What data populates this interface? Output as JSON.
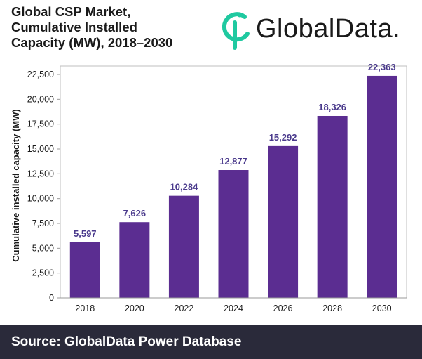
{
  "title_lines": [
    "Global CSP Market,",
    "Cumulative Installed",
    "Capacity (MW), 2018–2030"
  ],
  "logo": {
    "text": "GlobalData.",
    "icon": "globaldata-logo-icon",
    "color": "#1fc9a0"
  },
  "source": "Source: GlobalData Power Database",
  "colors": {
    "bar": "#5b2d91",
    "label": "#4a3a8c",
    "footer": "#2a2a3a"
  },
  "chart_data": {
    "type": "bar",
    "title": "Global CSP Market, Cumulative Installed Capacity (MW), 2018–2030",
    "categories": [
      "2018",
      "2020",
      "2022",
      "2024",
      "2026",
      "2028",
      "2030"
    ],
    "values": [
      5597,
      7626,
      10284,
      12877,
      15292,
      18326,
      22363
    ],
    "value_labels": [
      "5,597",
      "7,626",
      "10,284",
      "12,877",
      "15,292",
      "18,326",
      "22,363"
    ],
    "ylabel": "Cumulative installed capacity (MW)",
    "xlabel": "",
    "ylim": [
      0,
      22500
    ],
    "yticks": [
      0,
      2500,
      5000,
      7500,
      10000,
      12500,
      15000,
      17500,
      20000,
      22500
    ],
    "ytick_labels": [
      "0",
      "2,500",
      "5,000",
      "7,500",
      "10,000",
      "12,500",
      "15,000",
      "17,500",
      "20,000",
      "22,500"
    ],
    "grid": false,
    "legend": "none"
  }
}
